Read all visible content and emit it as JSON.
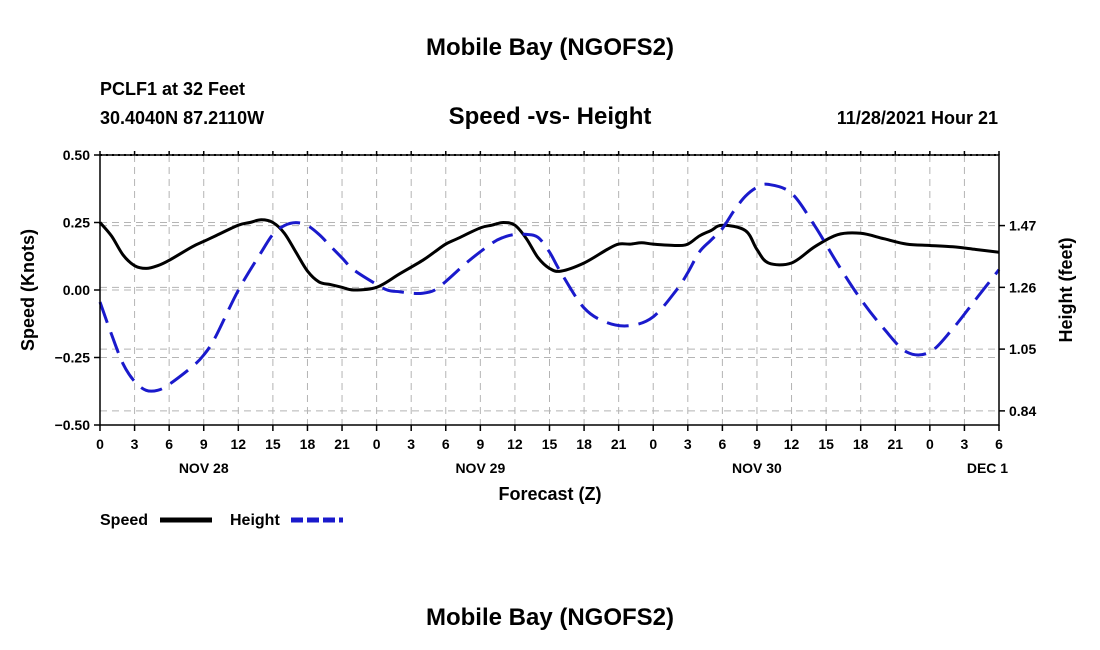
{
  "page_title": "Mobile Bay (NGOFS2)",
  "page_title_bottom": "Mobile Bay (NGOFS2)",
  "station": {
    "name": "PCLF1 at 32 Feet",
    "coords": "30.4040N  87.2110W"
  },
  "chart_title": "Speed -vs- Height",
  "issued": "11/28/2021 Hour 21",
  "colors": {
    "speed": "#000000",
    "height": "#1a1acc",
    "grid": "#b4b4b4"
  },
  "chart_data": {
    "type": "line",
    "title": "Speed -vs- Height",
    "xlabel": "Forecast (Z)",
    "ylabel_left": "Speed (Knots)",
    "ylabel_right": "Height (feet)",
    "x_range_hours": [
      0,
      78
    ],
    "x_tick_hours": [
      0,
      3,
      6,
      9,
      12,
      15,
      18,
      21,
      24,
      27,
      30,
      33,
      36,
      39,
      42,
      45,
      48,
      51,
      54,
      57,
      60,
      63,
      66,
      69,
      72,
      75,
      78
    ],
    "x_tick_labels": [
      "0",
      "3",
      "6",
      "9",
      "12",
      "15",
      "18",
      "21",
      "0",
      "3",
      "6",
      "9",
      "12",
      "15",
      "18",
      "21",
      "0",
      "3",
      "6",
      "9",
      "12",
      "15",
      "18",
      "21",
      "0",
      "3",
      "6"
    ],
    "day_labels": [
      {
        "hour": 9,
        "label": "NOV 28"
      },
      {
        "hour": 33,
        "label": "NOV 29"
      },
      {
        "hour": 57,
        "label": "NOV 30"
      },
      {
        "hour": 77,
        "label": "DEC 1"
      }
    ],
    "y_left_range": [
      -0.5,
      0.5
    ],
    "y_left_ticks": [
      0.5,
      0.25,
      0.0,
      -0.25,
      -0.5
    ],
    "y_left_tick_labels": [
      "0.50",
      "0.25",
      "0.00",
      "−0.25",
      "−0.50"
    ],
    "y_right_range": [
      0.792,
      1.71
    ],
    "y_right_ticks": [
      1.47,
      1.26,
      1.05,
      0.84
    ],
    "y_right_tick_labels": [
      "1.47",
      "1.26",
      "1.05",
      "0.84"
    ],
    "series": [
      {
        "name": "Speed",
        "axis": "left",
        "style": "solid",
        "x": [
          0,
          1,
          2,
          3,
          4,
          5,
          6,
          8,
          9,
          10,
          12,
          13,
          14,
          15,
          16,
          17,
          18,
          19,
          20,
          21,
          22,
          24,
          26,
          28,
          29,
          30,
          31,
          33,
          34,
          35,
          36,
          37,
          38,
          39,
          40,
          42,
          44,
          45,
          46,
          47,
          48,
          50,
          51,
          52,
          53,
          54,
          56,
          57,
          58,
          60,
          62,
          64,
          66,
          68,
          70,
          72,
          74,
          76,
          78
        ],
        "values": [
          0.25,
          0.2,
          0.13,
          0.09,
          0.08,
          0.09,
          0.11,
          0.16,
          0.18,
          0.2,
          0.24,
          0.25,
          0.26,
          0.25,
          0.21,
          0.14,
          0.07,
          0.03,
          0.02,
          0.01,
          0.0,
          0.01,
          0.06,
          0.11,
          0.14,
          0.17,
          0.19,
          0.23,
          0.24,
          0.25,
          0.24,
          0.19,
          0.12,
          0.08,
          0.07,
          0.1,
          0.15,
          0.17,
          0.17,
          0.175,
          0.17,
          0.165,
          0.17,
          0.2,
          0.22,
          0.24,
          0.22,
          0.15,
          0.1,
          0.1,
          0.16,
          0.205,
          0.21,
          0.19,
          0.17,
          0.165,
          0.16,
          0.15,
          0.14
        ]
      },
      {
        "name": "Height",
        "axis": "right",
        "style": "dashed",
        "x": [
          0,
          1,
          2,
          3,
          4,
          5,
          6,
          8,
          9,
          10,
          12,
          14,
          15,
          16,
          17,
          18,
          19,
          20,
          21,
          22,
          24,
          25,
          26,
          27,
          28,
          29,
          30,
          32,
          34,
          35,
          36,
          37,
          38,
          39,
          40,
          42,
          44,
          46,
          48,
          50,
          51,
          52,
          53,
          54,
          55,
          56,
          57,
          58,
          60,
          62,
          64,
          66,
          68,
          70,
          72,
          74,
          76,
          78
        ],
        "values": [
          1.21,
          1.1,
          1.0,
          0.94,
          0.91,
          0.91,
          0.93,
          0.99,
          1.03,
          1.09,
          1.25,
          1.38,
          1.44,
          1.47,
          1.48,
          1.47,
          1.44,
          1.4,
          1.36,
          1.32,
          1.27,
          1.25,
          1.245,
          1.24,
          1.24,
          1.25,
          1.28,
          1.35,
          1.41,
          1.43,
          1.44,
          1.44,
          1.43,
          1.38,
          1.31,
          1.19,
          1.14,
          1.13,
          1.16,
          1.25,
          1.31,
          1.38,
          1.42,
          1.46,
          1.52,
          1.57,
          1.6,
          1.61,
          1.58,
          1.47,
          1.34,
          1.22,
          1.12,
          1.04,
          1.04,
          1.12,
          1.22,
          1.32
        ]
      }
    ],
    "legend": [
      {
        "name": "Speed",
        "style": "solid"
      },
      {
        "name": "Height",
        "style": "dashed"
      }
    ],
    "legend_position": "bottom-left",
    "grid": true
  }
}
